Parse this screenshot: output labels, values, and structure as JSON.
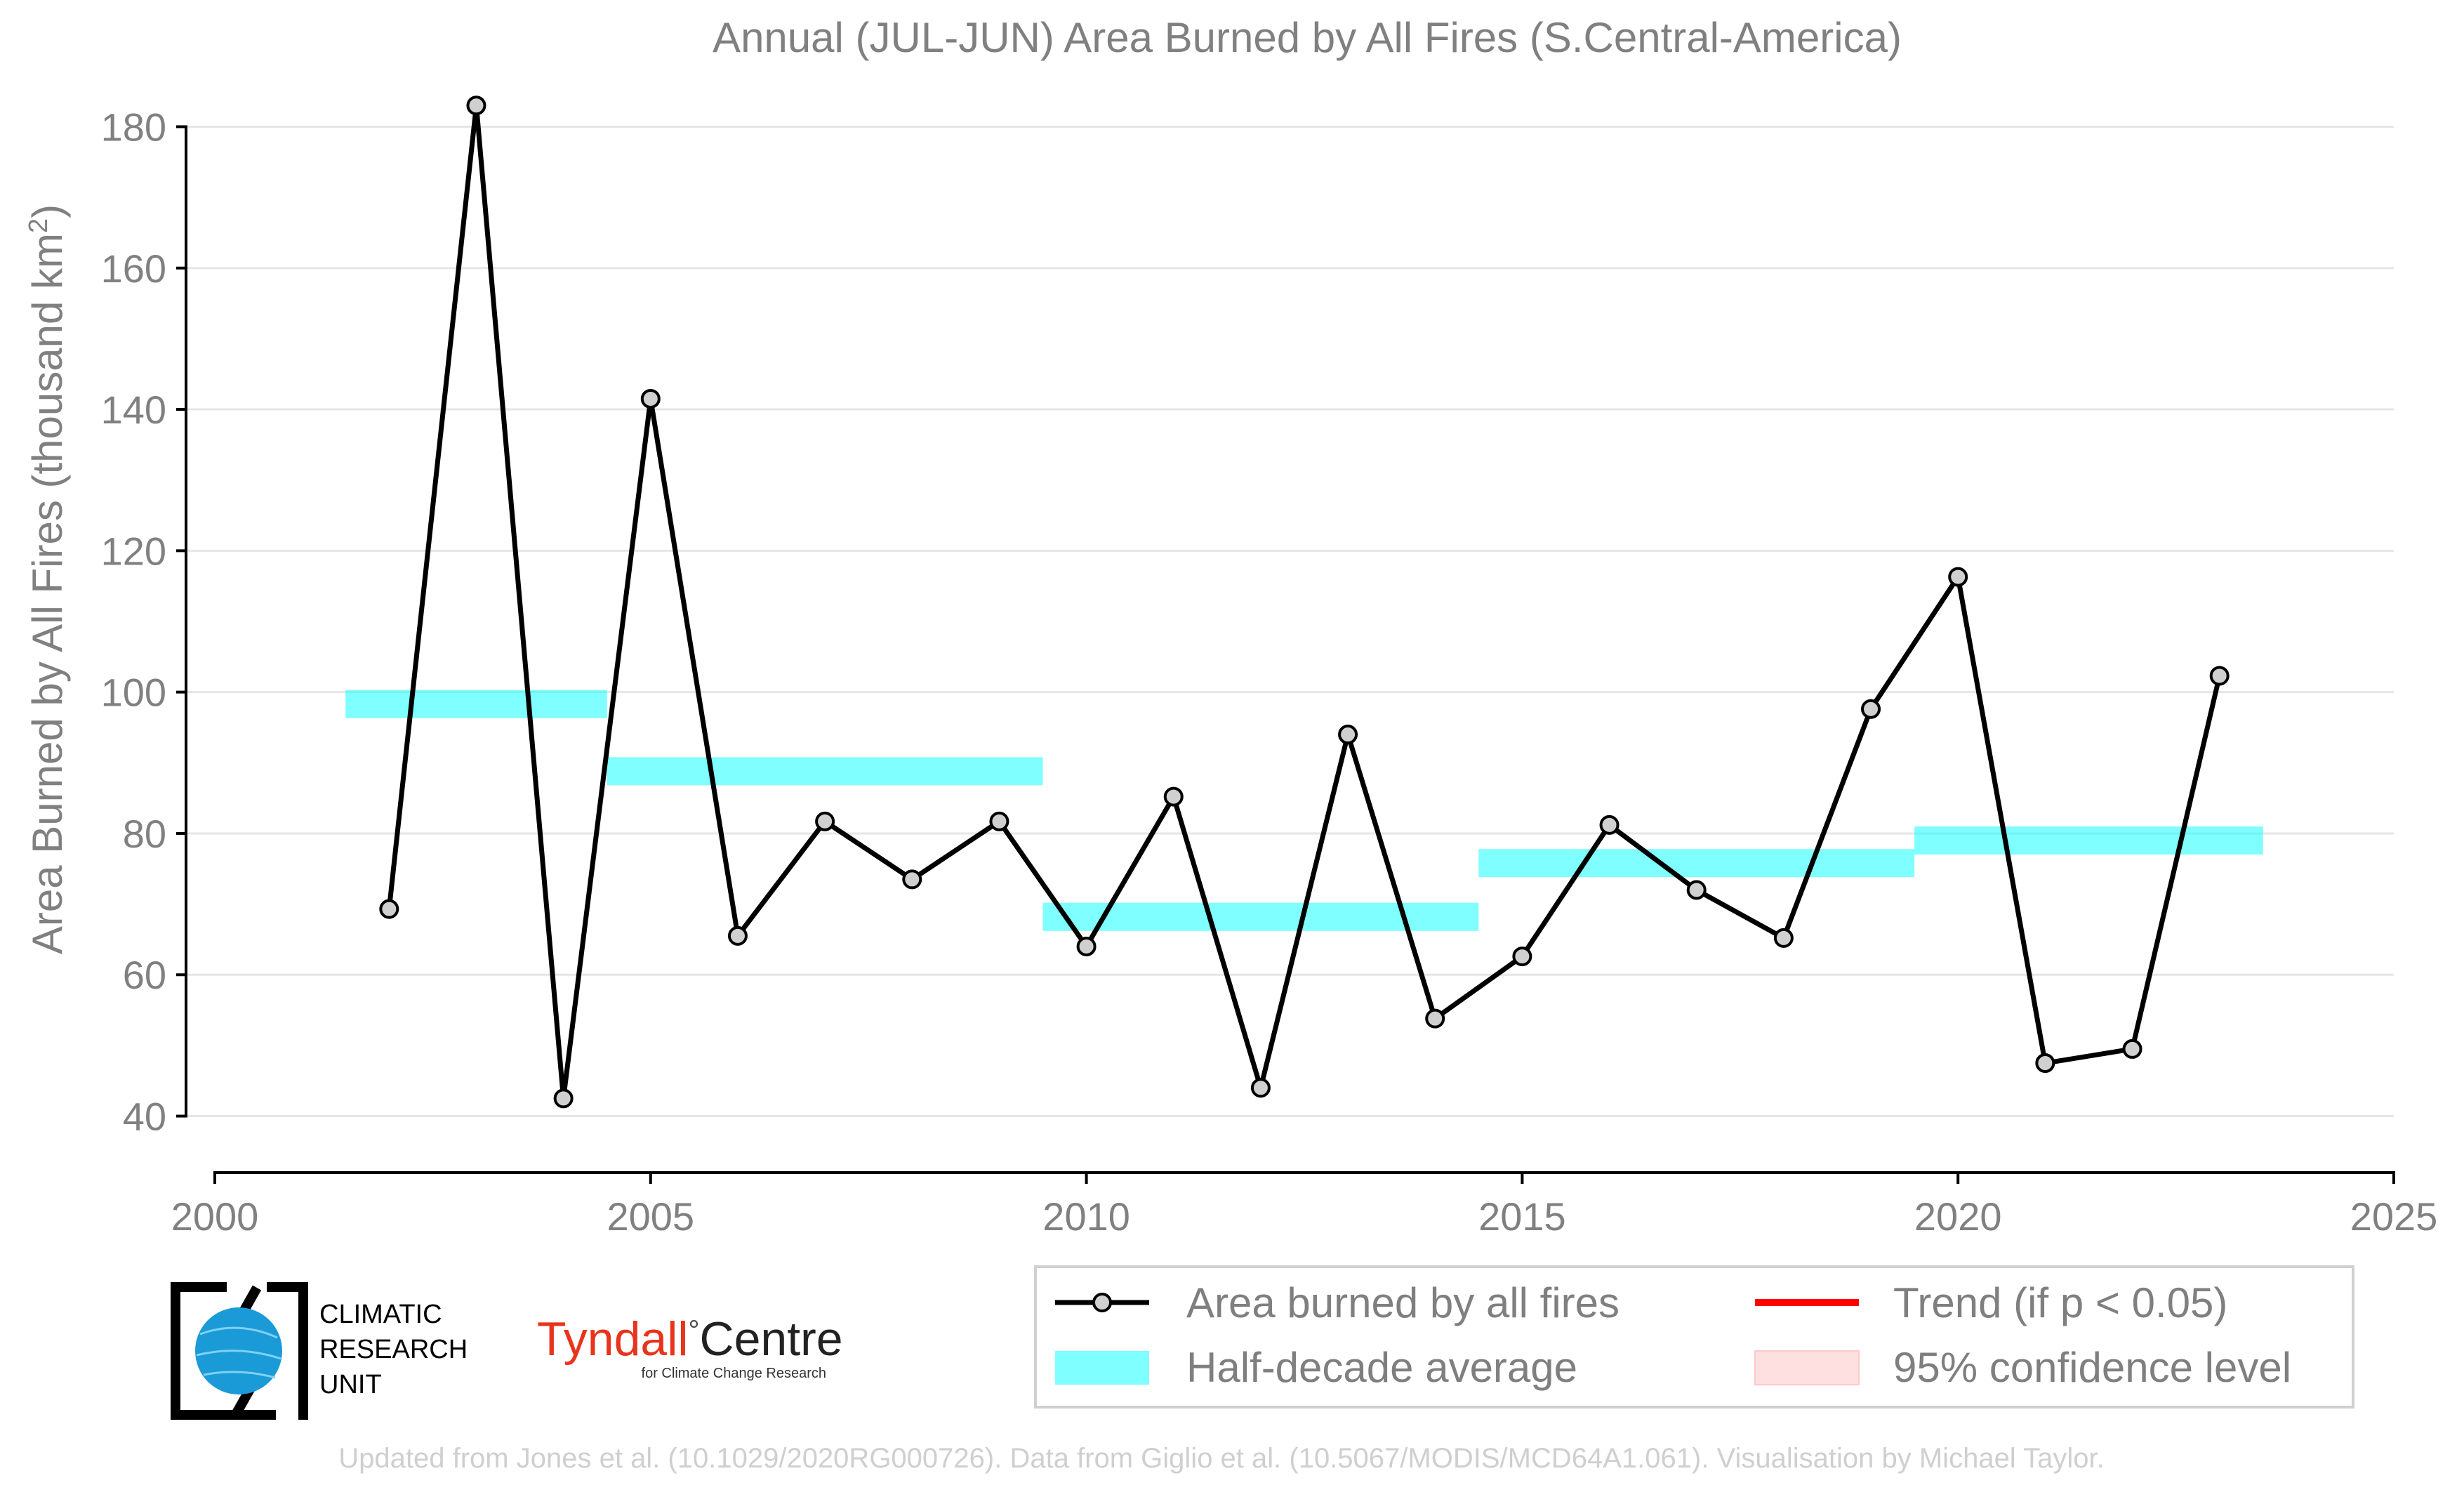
{
  "chart_data": {
    "type": "line",
    "title": "Annual (JUL-JUN) Area Burned by All Fires (S.Central-America)",
    "ylabel": "Area Burned by All Fires (thousand km",
    "ylabel_sup": "2",
    "ylabel_close": ")",
    "xlim": [
      2000,
      2025
    ],
    "ylim": [
      33,
      187
    ],
    "x_ticks": [
      "2000",
      "2005",
      "2010",
      "2015",
      "2020",
      "2025"
    ],
    "y_ticks": [
      "40",
      "60",
      "80",
      "100",
      "120",
      "140",
      "160",
      "180"
    ],
    "grid": "horizontal",
    "series": [
      {
        "name": "Area burned by all fires",
        "color": "#000000",
        "marker_fill": "#d0d0d0",
        "x": [
          2002,
          2003,
          2004,
          2005,
          2006,
          2007,
          2008,
          2009,
          2010,
          2011,
          2012,
          2013,
          2014,
          2015,
          2016,
          2017,
          2018,
          2019,
          2020,
          2021,
          2022,
          2023
        ],
        "y": [
          69.3,
          183.0,
          42.5,
          141.5,
          65.5,
          81.7,
          73.5,
          81.7,
          64.0,
          85.2,
          44.0,
          94.0,
          53.8,
          62.6,
          81.2,
          72.0,
          65.2,
          97.6,
          116.3,
          47.5,
          49.5,
          102.3
        ]
      }
    ],
    "half_decade_averages": {
      "name": "Half-decade average",
      "color": "#00ffff",
      "segments": [
        {
          "x_start": 2001.5,
          "x_end": 2004.5,
          "value": 98.3
        },
        {
          "x_start": 2004.5,
          "x_end": 2009.5,
          "value": 88.8
        },
        {
          "x_start": 2009.5,
          "x_end": 2014.5,
          "value": 68.2
        },
        {
          "x_start": 2014.5,
          "x_end": 2019.5,
          "value": 75.8
        },
        {
          "x_start": 2019.5,
          "x_end": 2023.5,
          "value": 79.0
        }
      ]
    },
    "legend": {
      "placement": "bottom-right",
      "entries": [
        {
          "label": "Area burned by all fires",
          "kind": "line-marker",
          "color": "#000000"
        },
        {
          "label": "Trend (if p < 0.05)",
          "kind": "line",
          "color": "#ff0000"
        },
        {
          "label": "Half-decade average",
          "kind": "band",
          "color": "#00ffff"
        },
        {
          "label": "95% confidence level",
          "kind": "patch",
          "color": "#ffdddd"
        }
      ]
    }
  },
  "logos": {
    "cru": {
      "lines": [
        "CLIMATIC",
        "RESEARCH",
        "UNIT"
      ]
    },
    "tyndall": {
      "main": "Tyndall",
      "degree": "°",
      "main2": "Centre",
      "sub": "for Climate Change Research"
    }
  },
  "footer": "Updated from Jones et al. (10.1029/2020RG000726). Data from Giglio et al. (10.5067/MODIS/MCD64A1.061). Visualisation by Michael Taylor."
}
